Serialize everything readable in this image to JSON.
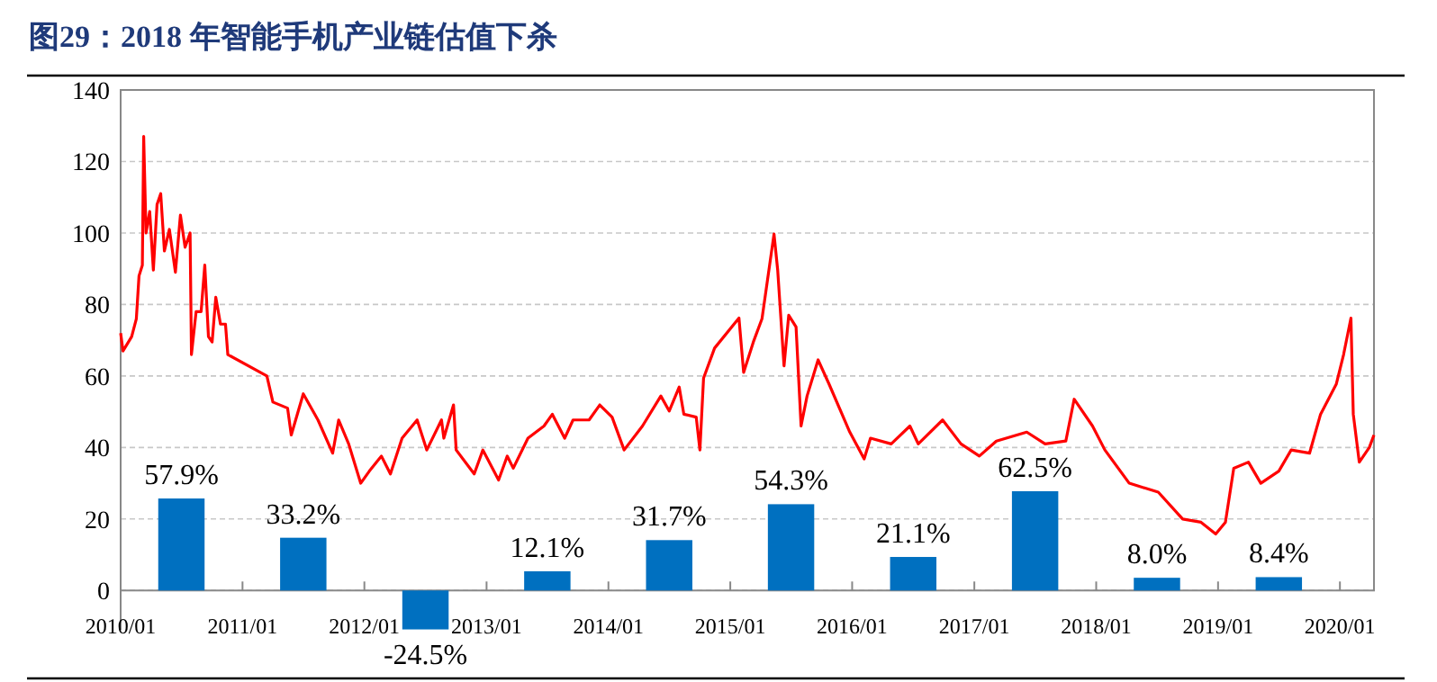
{
  "chart_data": {
    "type": "line",
    "title": "图29：2018 年智能手机产业链估值下杀",
    "xlim": [
      "2010-01-01",
      "2020-04-12"
    ],
    "ylim": [
      -11,
      140
    ],
    "y2lim": [
      -24.75,
      315
    ],
    "grid": "y",
    "xticks": [
      {
        "value": "2010-01",
        "label": "2010/01"
      },
      {
        "value": "2011-01",
        "label": "2011/01"
      },
      {
        "value": "2012-01",
        "label": "2012/01"
      },
      {
        "value": "2013-01",
        "label": "2013/01"
      },
      {
        "value": "2014-01",
        "label": "2014/01"
      },
      {
        "value": "2015-01",
        "label": "2015/01"
      },
      {
        "value": "2016-01",
        "label": "2016/01"
      },
      {
        "value": "2017-01",
        "label": "2017/01"
      },
      {
        "value": "2018-01",
        "label": "2018/01"
      },
      {
        "value": "2019-01",
        "label": "2019/01"
      },
      {
        "value": "2020-01",
        "label": "2020/01"
      }
    ],
    "yticks": [
      0,
      20,
      40,
      60,
      80,
      100,
      120,
      140
    ],
    "series": [
      {
        "color": "#ff0000",
        "x": [
          "2010-01-01",
          "2010-01-08",
          "2010-02-03",
          "2010-02-17",
          "2010-02-25",
          "2010-03-07",
          "2010-03-11",
          "2010-03-18",
          "2010-03-29",
          "2010-04-09",
          "2010-04-20",
          "2010-05-01",
          "2010-05-12",
          "2010-05-27",
          "2010-06-14",
          "2010-06-29",
          "2010-07-13",
          "2010-07-28",
          "2010-08-01",
          "2010-08-15",
          "2010-08-30",
          "2010-09-10",
          "2010-09-21",
          "2010-10-02",
          "2010-10-13",
          "2010-10-27",
          "2010-11-11",
          "2010-11-18",
          "2011-03-15",
          "2011-04-02",
          "2011-05-16",
          "2011-05-27",
          "2011-07-02",
          "2011-08-15",
          "2011-09-28",
          "2011-10-16",
          "2011-11-15",
          "2011-12-21",
          "2012-01-16",
          "2012-02-21",
          "2012-03-19",
          "2012-04-23",
          "2012-06-07",
          "2012-07-06",
          "2012-08-19",
          "2012-08-26",
          "2012-09-24",
          "2012-10-02",
          "2012-11-25",
          "2012-12-21",
          "2013-02-06",
          "2013-03-04",
          "2013-03-22",
          "2013-05-05",
          "2013-06-22",
          "2013-07-17",
          "2013-08-23",
          "2013-09-17",
          "2013-11-04",
          "2013-12-06",
          "2014-01-12",
          "2014-02-17",
          "2014-04-13",
          "2014-06-07",
          "2014-07-02",
          "2014-08-01",
          "2014-08-15",
          "2014-09-21",
          "2014-10-02",
          "2014-10-13",
          "2014-11-15",
          "2015-01-27",
          "2015-02-10",
          "2015-03-11",
          "2015-04-06",
          "2015-05-12",
          "2015-05-23",
          "2015-06-11",
          "2015-06-25",
          "2015-07-17",
          "2015-08-01",
          "2015-08-19",
          "2015-09-21",
          "2015-10-24",
          "2015-12-25",
          "2016-02-06",
          "2016-02-25",
          "2016-04-27",
          "2016-06-22",
          "2016-07-17",
          "2016-09-28",
          "2016-11-22",
          "2017-01-16",
          "2017-03-08",
          "2017-06-07",
          "2017-08-01",
          "2017-10-02",
          "2017-10-27",
          "2017-12-21",
          "2018-01-27",
          "2018-04-10",
          "2018-07-06",
          "2018-09-17",
          "2018-11-11",
          "2018-12-25",
          "2019-01-23",
          "2019-02-17",
          "2019-04-02",
          "2019-05-09",
          "2019-07-02",
          "2019-08-08",
          "2019-10-02",
          "2019-11-04",
          "2019-12-21",
          "2020-01-12",
          "2020-02-03",
          "2020-02-10",
          "2020-02-28",
          "2020-03-29",
          "2020-04-12"
        ],
        "values": [
          72,
          67,
          71,
          76,
          88,
          91,
          127,
          100,
          106,
          89.6,
          108,
          111,
          95,
          101,
          89,
          105,
          96,
          100,
          66,
          78,
          78,
          91,
          71,
          69.5,
          82,
          74.5,
          74.5,
          66,
          60,
          52.7,
          51,
          43.5,
          55,
          47.7,
          38.4,
          47.7,
          41,
          30,
          33.4,
          37.6,
          32.6,
          42.6,
          47.7,
          39.3,
          47.7,
          42.6,
          51.9,
          39.3,
          32.6,
          39.3,
          30.9,
          37.6,
          34.2,
          42.6,
          46,
          49.3,
          42.6,
          47.7,
          47.7,
          51.9,
          48.5,
          39.3,
          46,
          54.4,
          50.2,
          56.9,
          49.3,
          48.5,
          39.3,
          59.4,
          67.8,
          76.2,
          61,
          69.5,
          76,
          99.7,
          89.6,
          62.8,
          77,
          73.7,
          46,
          54.4,
          64.5,
          57.7,
          44.3,
          36.8,
          42.6,
          41,
          46,
          41,
          47.7,
          41,
          37.6,
          41.8,
          44.3,
          41,
          41.8,
          53.5,
          46,
          39.3,
          30,
          27.5,
          20,
          19.1,
          15.8,
          19.1,
          34.2,
          35.9,
          30,
          33.4,
          39.3,
          38.4,
          49.3,
          57.7,
          66,
          76.2,
          49.3,
          35.9,
          40,
          43.5
        ]
      },
      {
        "type": "bar",
        "color": "#0070c0",
        "axis": "y2",
        "x": [
          "2010-07-02",
          "2011-07-02",
          "2012-07-02",
          "2013-07-02",
          "2014-07-02",
          "2015-07-02",
          "2016-07-02",
          "2017-07-02",
          "2018-07-02",
          "2019-07-02"
        ],
        "values": [
          57.9,
          33.2,
          -24.5,
          12.1,
          31.7,
          54.3,
          21.1,
          62.5,
          8.0,
          8.4
        ],
        "value_labels": [
          "57.9%",
          "33.2%",
          "-24.5%",
          "12.1%",
          "31.7%",
          "54.3%",
          "21.1%",
          "62.5%",
          "8.0%",
          "8.4%"
        ]
      }
    ]
  }
}
